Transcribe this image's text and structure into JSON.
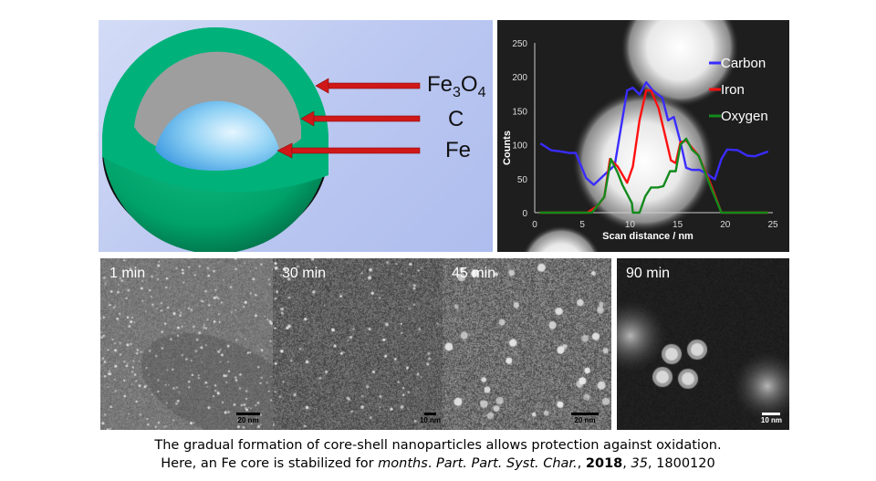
{
  "diagram": {
    "labels": {
      "fe3o4_main": "Fe",
      "fe3o4_sub1": "3",
      "fe3o4_o": "O",
      "fe3o4_sub2": "4",
      "carbon": "C",
      "iron": "Fe"
    },
    "colors": {
      "shell": "#00b27a",
      "carbon_layer": "#a0a0a0",
      "core": "#7cc8f0",
      "arrow": "#d01818"
    }
  },
  "chart_data": {
    "type": "line",
    "title": "",
    "xlabel": "Scan distance / nm",
    "ylabel": "Counts",
    "xlim": [
      0,
      25
    ],
    "ylim": [
      0,
      250
    ],
    "xticks": [
      0,
      5,
      10,
      15,
      20,
      25
    ],
    "yticks": [
      0,
      50,
      100,
      150,
      200,
      250
    ],
    "legend_position": "top-right",
    "series": [
      {
        "name": "Carbon",
        "color": "#3a2cff",
        "x": [
          0.6,
          1.7,
          2.8,
          3.6,
          4.3,
          5.4,
          6.2,
          7.1,
          8.4,
          9.7,
          10.3,
          11,
          11.7,
          12.4,
          13.4,
          14,
          14.6,
          15.3,
          15.9,
          16.5,
          17.3,
          18.1,
          18.9,
          19.6,
          20.2,
          21.3,
          22.3,
          23.1,
          24.5
        ],
        "y": [
          102,
          92,
          90,
          88,
          88,
          51,
          41,
          53,
          70,
          180,
          184,
          174,
          192,
          180,
          169,
          136,
          141,
          104,
          66,
          63,
          63,
          57,
          49,
          79,
          93,
          92,
          84,
          83,
          90
        ]
      },
      {
        "name": "Iron",
        "color": "#ff1010",
        "x": [
          0.5,
          5.5,
          6.6,
          7.3,
          7.9,
          8.7,
          9.7,
          10.3,
          11,
          11.7,
          12.2,
          13,
          13.7,
          14.3,
          14.8,
          15.3,
          15.9,
          17.2,
          18.5,
          19.6,
          24.5
        ],
        "y": [
          0,
          0,
          10,
          23,
          79,
          68,
          44,
          68,
          136,
          180,
          180,
          154,
          113,
          77,
          73,
          104,
          106,
          84,
          41,
          0,
          0
        ]
      },
      {
        "name": "Oxygen",
        "color": "#138a1c",
        "x": [
          0.5,
          6,
          7.3,
          8,
          8.7,
          9.2,
          10.2,
          10.3,
          11,
          11.6,
          12.2,
          12.9,
          13.5,
          14.2,
          14.8,
          15.3,
          15.9,
          16.5,
          17.2,
          18.5,
          19.6,
          24.5
        ],
        "y": [
          0,
          0,
          23,
          79,
          59,
          41,
          14,
          0,
          0,
          24,
          37,
          37,
          39,
          61,
          61,
          100,
          109,
          93,
          84,
          37,
          0,
          0
        ]
      }
    ]
  },
  "tem_panels": [
    {
      "label": "1 min",
      "scale": "20 nm"
    },
    {
      "label": "30 min",
      "scale": "10 nm"
    },
    {
      "label": "45 min",
      "scale": "20 nm"
    },
    {
      "label": "90 min",
      "scale": "10 nm"
    }
  ],
  "caption": {
    "line1": "The gradual formation of core-shell nanoparticles allows protection against oxidation.",
    "line2_a": "Here, an Fe core is stabilized for ",
    "line2_months": "months",
    "line2_b": ". ",
    "line2_journal": "Part. Part. Syst. Char.",
    "line2_c": ", ",
    "line2_year": "2018",
    "line2_d": ", ",
    "line2_volume": "35",
    "line2_e": ", 1800120"
  }
}
